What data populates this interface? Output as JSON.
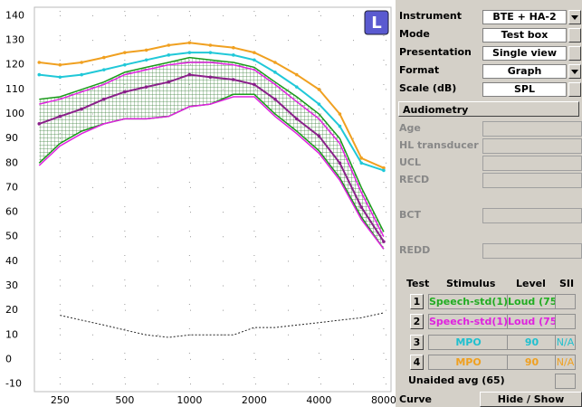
{
  "chart_data": {
    "type": "line",
    "xscale": "log",
    "grid": true,
    "side": "L",
    "x": [
      200,
      250,
      315,
      400,
      500,
      630,
      800,
      1000,
      1250,
      1600,
      2000,
      2500,
      3150,
      4000,
      5000,
      6300,
      8000
    ],
    "xlim": [
      190,
      8650
    ],
    "xticks": [
      250,
      500,
      1000,
      2000,
      4000,
      8000
    ],
    "ylim": [
      -12,
      142
    ],
    "yticks": [
      -10,
      0,
      10,
      20,
      30,
      40,
      50,
      60,
      70,
      80,
      90,
      100,
      110,
      120,
      130,
      140
    ],
    "bands": [
      {
        "color": "#1a9a1a",
        "upper": [
          106,
          107,
          110,
          113,
          117,
          119,
          121,
          123,
          122,
          121,
          119,
          113,
          107,
          100,
          90,
          70,
          52
        ],
        "lower": [
          80,
          88,
          93,
          96,
          98,
          98,
          99,
          103,
          104,
          108,
          108,
          100,
          93,
          85,
          74,
          58,
          45
        ]
      },
      {
        "color": "#e020e0",
        "upper": [
          104,
          106,
          109,
          112,
          116,
          118,
          120,
          121,
          121,
          120,
          118,
          112,
          105,
          98,
          88,
          68,
          50
        ],
        "lower": [
          79,
          87,
          92,
          96,
          98,
          98,
          99,
          103,
          104,
          107,
          107,
          99,
          92,
          84,
          73,
          57,
          45
        ]
      }
    ],
    "series": [
      {
        "color": "#f0a020",
        "style": "solid",
        "values": [
          121,
          120,
          121,
          123,
          125,
          126,
          128,
          129,
          128,
          127,
          125,
          121,
          116,
          110,
          100,
          82,
          78
        ]
      },
      {
        "color": "#20c8d8",
        "style": "solid",
        "values": [
          116,
          115,
          116,
          118,
          120,
          122,
          124,
          125,
          125,
          124,
          122,
          117,
          111,
          104,
          95,
          80,
          77
        ]
      },
      {
        "color": "#8a208a",
        "style": "solid",
        "values": [
          96,
          99,
          102,
          106,
          109,
          111,
          113,
          116,
          115,
          114,
          112,
          106,
          98,
          91,
          80,
          62,
          48
        ]
      },
      {
        "color": "#222222",
        "style": "dotted",
        "values": [
          null,
          18,
          16,
          14,
          12,
          10,
          9,
          10,
          10,
          10,
          13,
          13,
          14,
          15,
          16,
          17,
          19
        ]
      }
    ]
  },
  "settings": [
    {
      "label": "Instrument",
      "value": "BTE + HA-2",
      "dropdown": true
    },
    {
      "label": "Mode",
      "value": "Test box",
      "dropdown": false
    },
    {
      "label": "Presentation",
      "value": "Single view",
      "dropdown": false
    },
    {
      "label": "Format",
      "value": "Graph",
      "dropdown": true
    },
    {
      "label": "Scale (dB)",
      "value": "SPL",
      "dropdown": false
    }
  ],
  "audiometry": {
    "title": "Audiometry",
    "fields": [
      "Age",
      "HL transducer",
      "UCL",
      "RECD",
      "BCT",
      "REDD"
    ]
  },
  "tests": {
    "headers": [
      "Test",
      "Stimulus",
      "Level",
      "SII"
    ],
    "rows": [
      {
        "test": "1",
        "stimulus": "Speech-std(1)",
        "level": "Loud (75)",
        "color": "#20b020"
      },
      {
        "test": "2",
        "stimulus": "Speech-std(1)",
        "level": "Loud (75)",
        "color": "#e020e0"
      },
      {
        "test": "3",
        "stimulus": "MPO",
        "level": "90",
        "sii": "N/A",
        "color": "#20c0d0"
      },
      {
        "test": "4",
        "stimulus": "MPO",
        "level": "90",
        "sii": "N/A",
        "color": "#f0a020"
      }
    ],
    "unaided": "Unaided avg (65)",
    "curve_label": "Curve",
    "curve_button": "Hide / Show"
  }
}
